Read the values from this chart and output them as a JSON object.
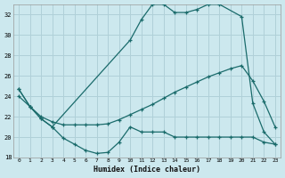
{
  "xlabel": "Humidex (Indice chaleur)",
  "bg_color": "#cce8ee",
  "grid_color": "#b0d0d8",
  "line_color": "#1a6b6b",
  "xlim": [
    -0.5,
    23.5
  ],
  "ylim": [
    18,
    33
  ],
  "yticks": [
    18,
    20,
    22,
    24,
    26,
    28,
    30,
    32
  ],
  "xticks": [
    0,
    1,
    2,
    3,
    4,
    5,
    6,
    7,
    8,
    9,
    10,
    11,
    12,
    13,
    14,
    15,
    16,
    17,
    18,
    19,
    20,
    21,
    22,
    23
  ],
  "curve1_x": [
    0,
    1,
    2,
    3,
    4,
    5,
    6,
    7,
    8,
    9,
    10,
    11,
    12,
    13,
    14,
    15,
    16,
    17,
    18,
    19,
    20,
    21,
    22,
    23
  ],
  "curve1_y": [
    24.7,
    23.0,
    21.8,
    21.0,
    19.9,
    19.3,
    18.7,
    18.4,
    18.5,
    19.5,
    21.0,
    20.5,
    20.5,
    20.5,
    20.0,
    20.0,
    20.0,
    20.0,
    20.0,
    20.0,
    20.0,
    20.0,
    19.5,
    19.3
  ],
  "curve2_x": [
    0,
    1,
    2,
    3,
    4,
    5,
    6,
    7,
    8,
    9,
    10,
    11,
    12,
    13,
    14,
    15,
    16,
    17,
    18,
    19,
    20,
    21,
    22,
    23
  ],
  "curve2_y": [
    24.0,
    23.0,
    22.0,
    21.5,
    21.2,
    21.2,
    21.2,
    21.2,
    21.3,
    21.7,
    22.2,
    22.7,
    23.2,
    23.8,
    24.4,
    24.9,
    25.4,
    25.9,
    26.3,
    26.7,
    27.0,
    25.5,
    23.5,
    21.0
  ],
  "curve3_x": [
    0,
    1,
    2,
    3,
    10,
    11,
    12,
    13,
    14,
    15,
    16,
    17,
    18,
    20,
    21,
    22,
    23
  ],
  "curve3_y": [
    24.7,
    23.0,
    21.8,
    21.0,
    29.5,
    31.5,
    33.0,
    33.0,
    32.2,
    32.2,
    32.5,
    33.0,
    33.0,
    31.8,
    23.3,
    20.5,
    19.3
  ]
}
